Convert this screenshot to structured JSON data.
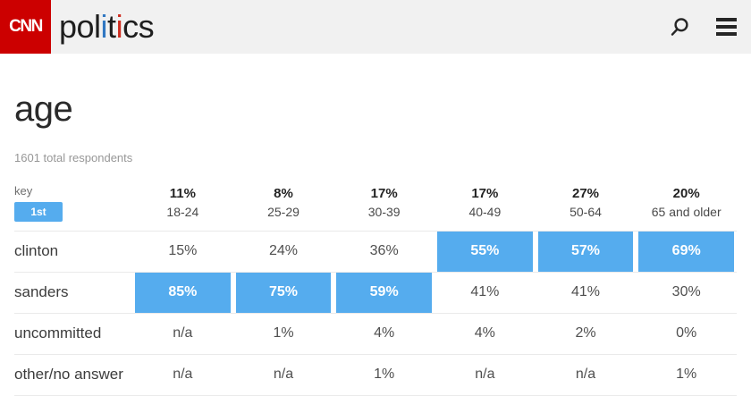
{
  "header": {
    "logo_text": "CNN",
    "brand_segments": [
      {
        "text": "pol",
        "color": "dark"
      },
      {
        "text": "i",
        "color": "blue"
      },
      {
        "text": "t",
        "color": "dark"
      },
      {
        "text": "i",
        "color": "red"
      },
      {
        "text": "cs",
        "color": "dark"
      }
    ],
    "icons": [
      "search-icon",
      "menu-icon"
    ]
  },
  "colors": {
    "brand_red": "#cc0000",
    "accent_blue": "#55acee",
    "topbar_gray": "#f1f1f1"
  },
  "chart_data": {
    "type": "table",
    "title": "age",
    "subtitle": "1601 total respondents",
    "total_respondents": 1601,
    "key": {
      "label": "key",
      "badge": "1st"
    },
    "columns": [
      {
        "share": "11%",
        "label": "18-24"
      },
      {
        "share": "8%",
        "label": "25-29"
      },
      {
        "share": "17%",
        "label": "30-39"
      },
      {
        "share": "17%",
        "label": "40-49"
      },
      {
        "share": "27%",
        "label": "50-64"
      },
      {
        "share": "20%",
        "label": "65 and older"
      }
    ],
    "rows": [
      {
        "label": "clinton",
        "values": [
          "15%",
          "24%",
          "36%",
          "55%",
          "57%",
          "69%"
        ],
        "highlighted": [
          false,
          false,
          false,
          true,
          true,
          true
        ]
      },
      {
        "label": "sanders",
        "values": [
          "85%",
          "75%",
          "59%",
          "41%",
          "41%",
          "30%"
        ],
        "highlighted": [
          true,
          true,
          true,
          false,
          false,
          false
        ]
      },
      {
        "label": "uncommitted",
        "values": [
          "n/a",
          "1%",
          "4%",
          "4%",
          "2%",
          "0%"
        ],
        "highlighted": [
          false,
          false,
          false,
          false,
          false,
          false
        ]
      },
      {
        "label": "other/no answer",
        "values": [
          "n/a",
          "n/a",
          "1%",
          "n/a",
          "n/a",
          "1%"
        ],
        "highlighted": [
          false,
          false,
          false,
          false,
          false,
          false
        ]
      }
    ]
  }
}
